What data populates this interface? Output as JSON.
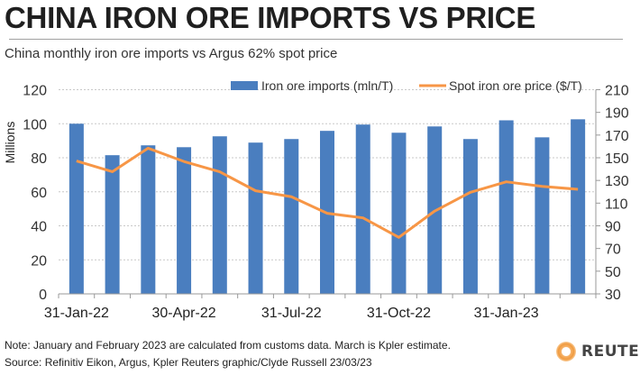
{
  "header": {
    "title": "CHINA IRON ORE IMPORTS VS PRICE",
    "subtitle": "China monthly iron ore imports vs Argus 62% spot price"
  },
  "footer": {
    "note": "Note: January and February 2023 are calculated from customs data. March is Kpler estimate.",
    "source": "Source: Refinitiv Eikon, Argus, Kpler    Reuters graphic/Clyde Russell 23/03/23",
    "logo_text": "REUTERS"
  },
  "colors": {
    "bars": "#4a7ebf",
    "line": "#f79646",
    "grid": "#c8c8c8",
    "axis": "#999999"
  },
  "chart_data": {
    "type": "bar+line",
    "title": "CHINA IRON ORE IMPORTS VS PRICE",
    "subtitle": "China monthly iron ore imports vs Argus 62% spot price",
    "categories": [
      "Jan-22",
      "Feb-22",
      "Mar-22",
      "Apr-22",
      "May-22",
      "Jun-22",
      "Jul-22",
      "Aug-22",
      "Sep-22",
      "Oct-22",
      "Nov-22",
      "Dec-22",
      "Jan-23",
      "Feb-23",
      "Mar-23"
    ],
    "x_tick_labels": [
      "31-Jan-22",
      "30-Apr-22",
      "31-Jul-22",
      "31-Oct-22",
      "31-Jan-23"
    ],
    "x_tick_label_indices": [
      0,
      3,
      6,
      9,
      12
    ],
    "series": [
      {
        "name": "Iron ore imports (mln/T)",
        "type": "bar",
        "axis": "left",
        "values": [
          100,
          81.5,
          87.3,
          86.2,
          92.6,
          88.9,
          91.0,
          95.8,
          99.5,
          94.7,
          98.4,
          91.0,
          102.0,
          92.0,
          102.6
        ]
      },
      {
        "name": "Spot iron ore price ($/T)",
        "type": "line",
        "axis": "right",
        "values": [
          147.2,
          137.7,
          158.4,
          146.7,
          137.6,
          120.9,
          115.6,
          101.0,
          97.0,
          79.8,
          103.0,
          119.6,
          128.8,
          124.8,
          122.2
        ]
      }
    ],
    "y_left": {
      "label": "Millions",
      "min": 0,
      "max": 120,
      "step": 20,
      "ticks": [
        "0",
        "20",
        "40",
        "60",
        "80",
        "100",
        "120"
      ]
    },
    "y_right": {
      "label": "",
      "min": 30,
      "max": 210,
      "step": 20,
      "ticks": [
        "30",
        "50",
        "70",
        "90",
        "110",
        "130",
        "150",
        "170",
        "190",
        "210"
      ]
    },
    "grid": true,
    "legend_position": "top"
  }
}
